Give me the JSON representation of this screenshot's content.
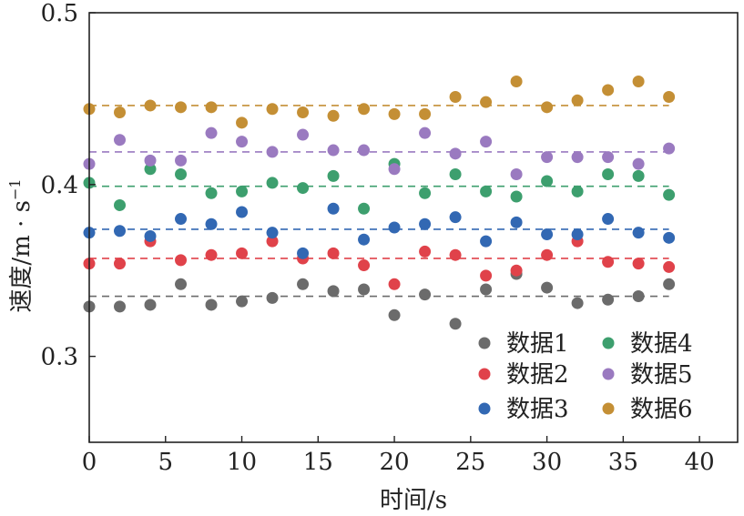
{
  "chart_data": {
    "type": "scatter",
    "title": "",
    "xlabel": "时间/s",
    "ylabel": "速度/m · s",
    "ylabel_sup": "−1",
    "xlim": [
      0,
      42.5
    ],
    "ylim": [
      0.25,
      0.5
    ],
    "xticks": [
      0,
      5,
      10,
      15,
      20,
      25,
      30,
      35,
      40
    ],
    "xtick_labels": [
      "0",
      "5",
      "10",
      "15",
      "20",
      "25",
      "30",
      "35",
      "40"
    ],
    "yticks": [
      0.3,
      0.4,
      0.5
    ],
    "ytick_labels": [
      "0.3",
      "0.4",
      "0.5"
    ],
    "grid": false,
    "legend": {
      "position": "bottom-right",
      "columns": 2
    },
    "x": [
      0,
      2,
      4,
      6,
      8,
      10,
      12,
      14,
      16,
      18,
      20,
      22,
      24,
      26,
      28,
      30,
      32,
      34,
      36,
      38
    ],
    "mean_line_extent": [
      0,
      38
    ],
    "series": [
      {
        "name": "数据1",
        "color": "#6b6b6b",
        "mean": 0.335,
        "values": [
          0.329,
          0.329,
          0.33,
          0.342,
          0.33,
          0.332,
          0.334,
          0.342,
          0.338,
          0.339,
          0.324,
          0.336,
          0.319,
          0.339,
          0.348,
          0.34,
          0.331,
          0.333,
          0.335,
          0.342
        ]
      },
      {
        "name": "数据2",
        "color": "#e0424a",
        "mean": 0.357,
        "values": [
          0.354,
          0.354,
          0.367,
          0.356,
          0.359,
          0.36,
          0.367,
          0.357,
          0.36,
          0.353,
          0.342,
          0.361,
          0.359,
          0.347,
          0.35,
          0.359,
          0.367,
          0.355,
          0.354,
          0.352
        ]
      },
      {
        "name": "数据3",
        "color": "#3268b3",
        "mean": 0.374,
        "values": [
          0.372,
          0.373,
          0.37,
          0.38,
          0.377,
          0.384,
          0.372,
          0.36,
          0.386,
          0.368,
          0.375,
          0.377,
          0.381,
          0.367,
          0.378,
          0.371,
          0.371,
          0.38,
          0.372,
          0.369
        ]
      },
      {
        "name": "数据4",
        "color": "#3d9f6e",
        "mean": 0.399,
        "values": [
          0.401,
          0.388,
          0.409,
          0.406,
          0.395,
          0.396,
          0.401,
          0.398,
          0.405,
          0.386,
          0.412,
          0.395,
          0.406,
          0.396,
          0.393,
          0.402,
          0.396,
          0.406,
          0.405,
          0.394
        ]
      },
      {
        "name": "数据5",
        "color": "#9a7ac0",
        "mean": 0.419,
        "values": [
          0.412,
          0.426,
          0.414,
          0.414,
          0.43,
          0.425,
          0.419,
          0.429,
          0.42,
          0.42,
          0.409,
          0.43,
          0.418,
          0.425,
          0.406,
          0.416,
          0.416,
          0.416,
          0.412,
          0.421
        ]
      },
      {
        "name": "数据6",
        "color": "#c48f35",
        "mean": 0.446,
        "values": [
          0.444,
          0.442,
          0.446,
          0.445,
          0.445,
          0.436,
          0.444,
          0.442,
          0.44,
          0.444,
          0.441,
          0.441,
          0.451,
          0.448,
          0.46,
          0.445,
          0.449,
          0.455,
          0.46,
          0.451
        ]
      }
    ]
  }
}
